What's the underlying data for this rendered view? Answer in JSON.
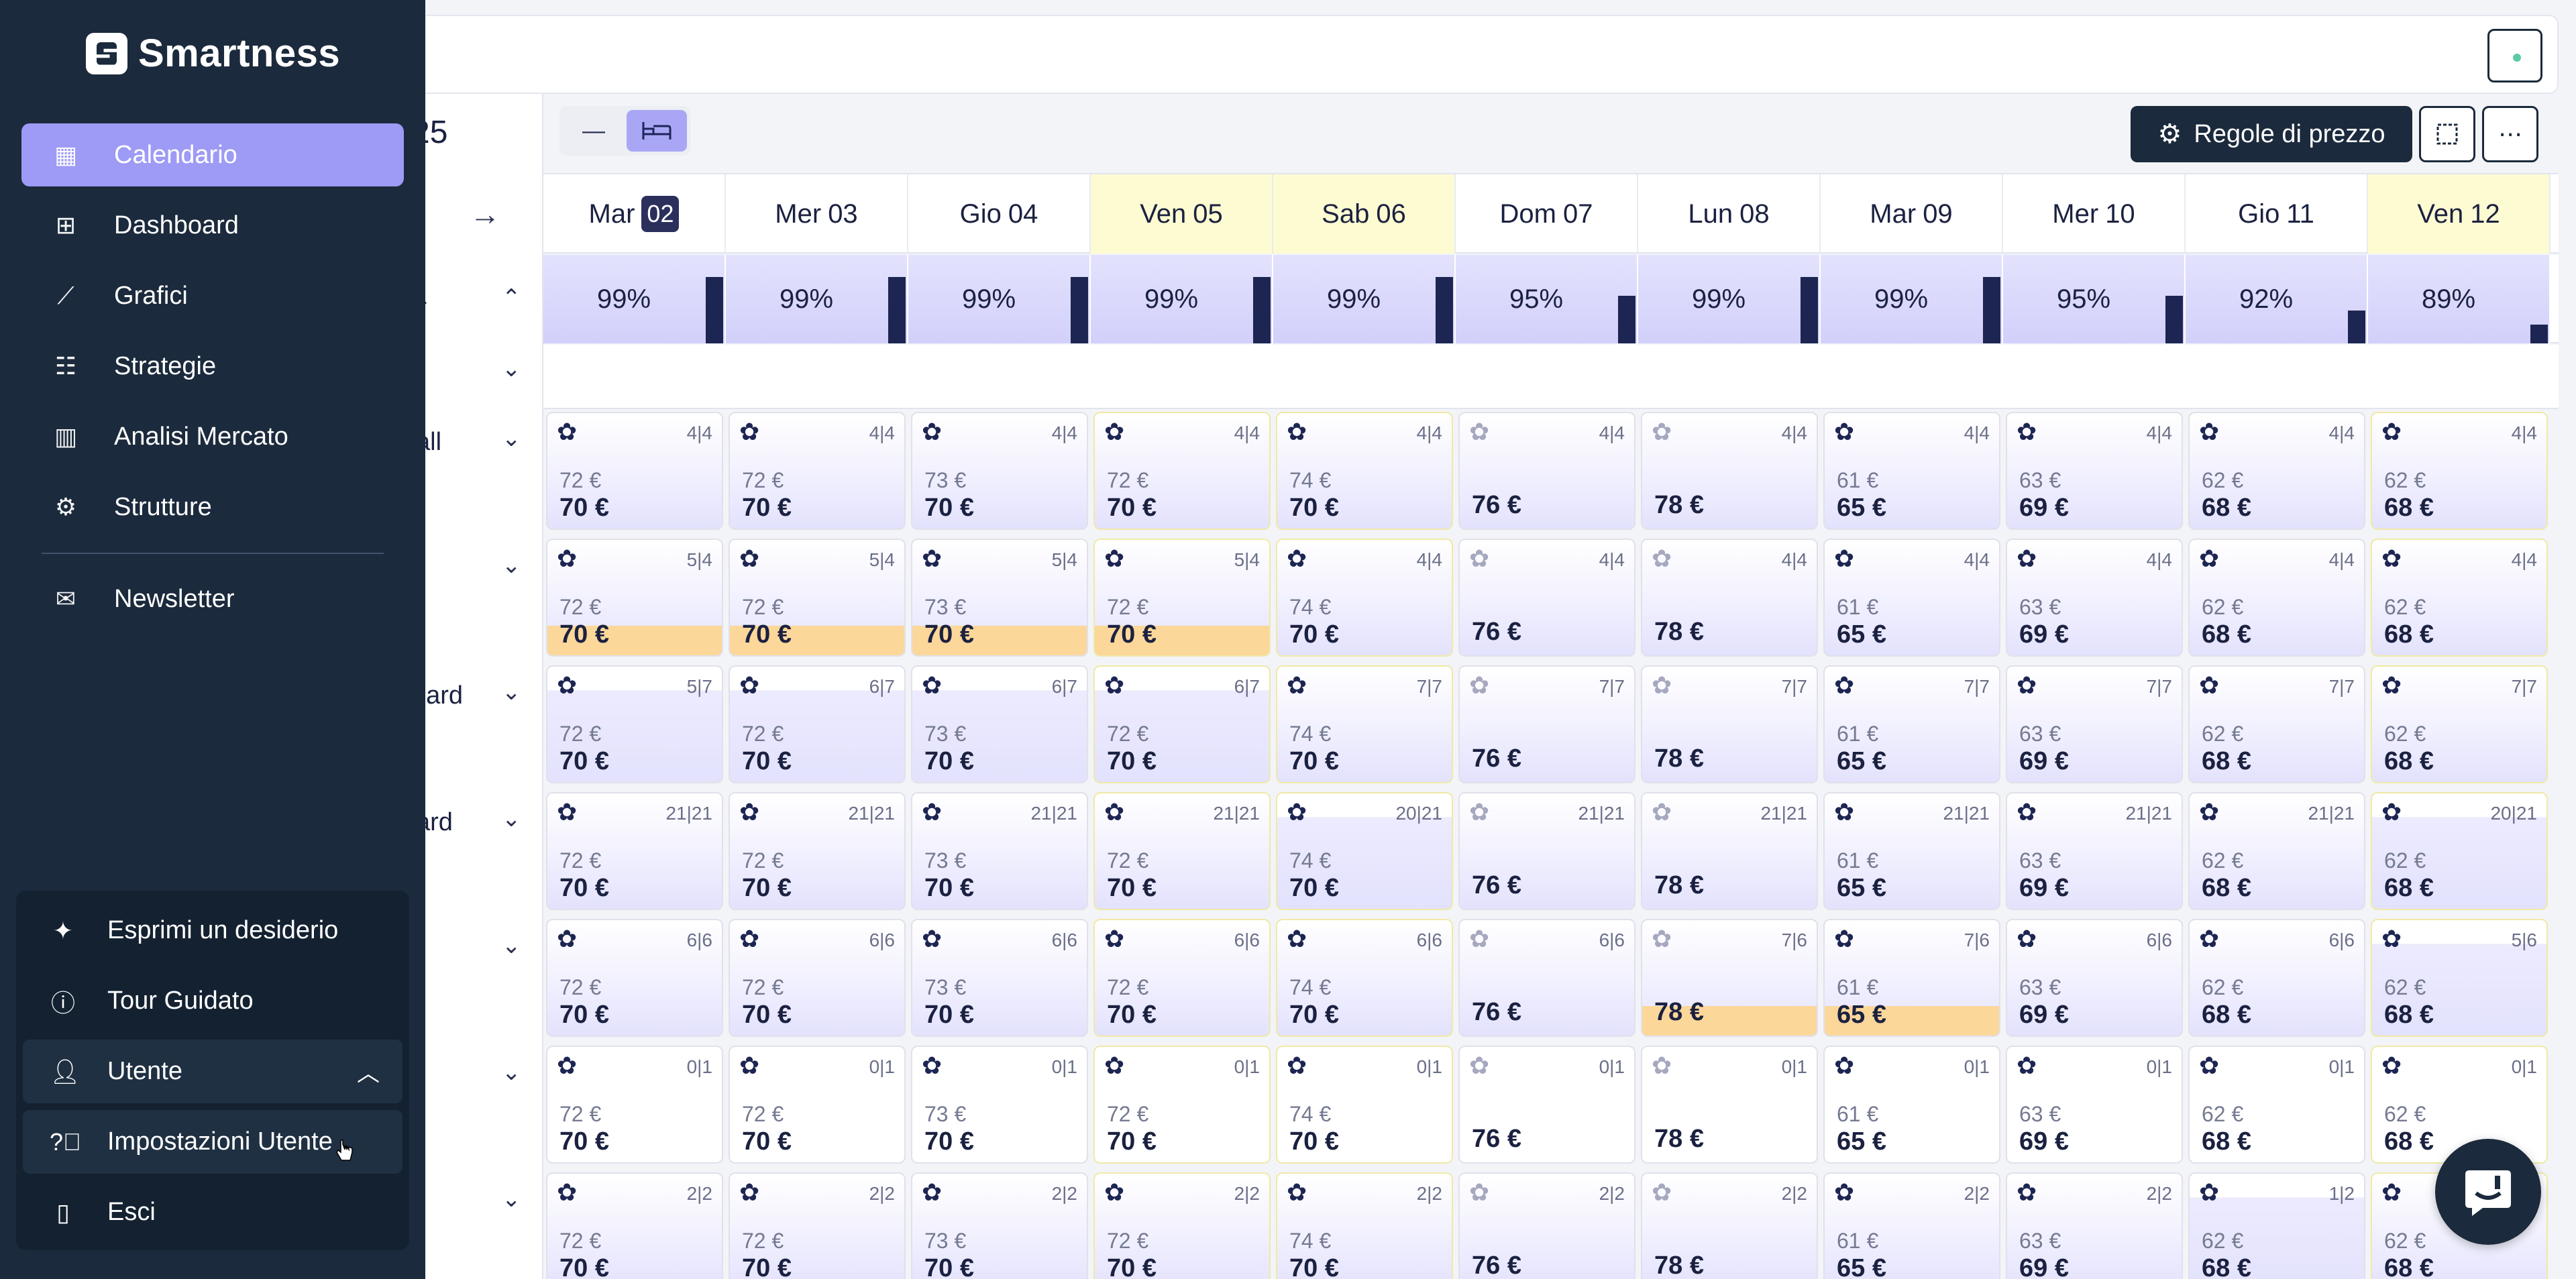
{
  "app": {
    "brand": "Smartness",
    "partial_date": "25"
  },
  "sidebar": {
    "items": [
      {
        "label": "Calendario",
        "icon": "calendar-icon",
        "active": true
      },
      {
        "label": "Dashboard",
        "icon": "dashboard-grid-icon",
        "active": false
      },
      {
        "label": "Grafici",
        "icon": "line-chart-icon",
        "active": false
      },
      {
        "label": "Strategie",
        "icon": "sliders-icon",
        "active": false
      },
      {
        "label": "Analisi Mercato",
        "icon": "bar-chart-icon",
        "active": false
      },
      {
        "label": "Strutture",
        "icon": "gear-icon",
        "active": false
      }
    ],
    "newsletter": {
      "label": "Newsletter",
      "icon": "mail-icon"
    }
  },
  "user_menu": {
    "items": [
      {
        "label": "Esprimi un desiderio",
        "icon": "sparkle-icon"
      },
      {
        "label": "Tour Guidato",
        "icon": "info-icon"
      },
      {
        "label": "Utente",
        "icon": "user-icon"
      },
      {
        "label": "Impostazioni Utente",
        "icon": "help-circle-icon"
      },
      {
        "label": "Esci",
        "icon": "door-icon"
      }
    ]
  },
  "toolbar": {
    "price_rules_label": "Regole di prezzo",
    "view_options": [
      "list-view-icon",
      "bed-view-icon"
    ],
    "selection_icon": "selection-icon",
    "more_icon": "more-horizontal-icon"
  },
  "calendar": {
    "days": [
      {
        "dow": "Mar",
        "num": "02",
        "today": true,
        "weekend": false,
        "occupancy": "99%",
        "occ_fraction": 0.99
      },
      {
        "dow": "Mer",
        "num": "03",
        "today": false,
        "weekend": false,
        "occupancy": "99%",
        "occ_fraction": 0.99
      },
      {
        "dow": "Gio",
        "num": "04",
        "today": false,
        "weekend": false,
        "occupancy": "99%",
        "occ_fraction": 0.99
      },
      {
        "dow": "Ven",
        "num": "05",
        "today": false,
        "weekend": true,
        "occupancy": "99%",
        "occ_fraction": 0.99
      },
      {
        "dow": "Sab",
        "num": "06",
        "today": false,
        "weekend": true,
        "occupancy": "99%",
        "occ_fraction": 0.99
      },
      {
        "dow": "Dom",
        "num": "07",
        "today": false,
        "weekend": false,
        "occupancy": "95%",
        "occ_fraction": 0.95
      },
      {
        "dow": "Lun",
        "num": "08",
        "today": false,
        "weekend": false,
        "occupancy": "99%",
        "occ_fraction": 0.99
      },
      {
        "dow": "Mar",
        "num": "09",
        "today": false,
        "weekend": false,
        "occupancy": "99%",
        "occ_fraction": 0.99
      },
      {
        "dow": "Mer",
        "num": "10",
        "today": false,
        "weekend": false,
        "occupancy": "95%",
        "occ_fraction": 0.95
      },
      {
        "dow": "Gio",
        "num": "11",
        "today": false,
        "weekend": false,
        "occupancy": "92%",
        "occ_fraction": 0.92
      },
      {
        "dow": "Ven",
        "num": "12",
        "today": false,
        "weekend": true,
        "occupancy": "89%",
        "occ_fraction": 0.89
      }
    ],
    "occupancy_label_partial": "a",
    "row_labels": [
      "",
      "all",
      "",
      "dard",
      "ard",
      "",
      "",
      ""
    ],
    "rows": [
      {
        "cells": [
          {
            "inv": "4|4",
            "base": "72 €",
            "price": "70 €",
            "gear": "dark"
          },
          {
            "inv": "4|4",
            "base": "72 €",
            "price": "70 €",
            "gear": "dark"
          },
          {
            "inv": "4|4",
            "base": "73 €",
            "price": "70 €",
            "gear": "dark"
          },
          {
            "inv": "4|4",
            "base": "72 €",
            "price": "70 €",
            "gear": "dark"
          },
          {
            "inv": "4|4",
            "base": "74 €",
            "price": "70 €",
            "gear": "dark"
          },
          {
            "inv": "4|4",
            "base": "",
            "price": "76 €",
            "gear": "light"
          },
          {
            "inv": "4|4",
            "base": "",
            "price": "78 €",
            "gear": "light"
          },
          {
            "inv": "4|4",
            "base": "61 €",
            "price": "65 €",
            "gear": "dark"
          },
          {
            "inv": "4|4",
            "base": "63 €",
            "price": "69 €",
            "gear": "dark"
          },
          {
            "inv": "4|4",
            "base": "62 €",
            "price": "68 €",
            "gear": "dark"
          },
          {
            "inv": "4|4",
            "base": "62 €",
            "price": "68 €",
            "gear": "dark"
          }
        ]
      },
      {
        "cells": [
          {
            "inv": "5|4",
            "base": "72 €",
            "price": "70 €",
            "gear": "dark",
            "hl": true
          },
          {
            "inv": "5|4",
            "base": "72 €",
            "price": "70 €",
            "gear": "dark",
            "hl": true
          },
          {
            "inv": "5|4",
            "base": "73 €",
            "price": "70 €",
            "gear": "dark",
            "hl": true
          },
          {
            "inv": "5|4",
            "base": "72 €",
            "price": "70 €",
            "gear": "dark",
            "hl": true
          },
          {
            "inv": "4|4",
            "base": "74 €",
            "price": "70 €",
            "gear": "dark"
          },
          {
            "inv": "4|4",
            "base": "",
            "price": "76 €",
            "gear": "light"
          },
          {
            "inv": "4|4",
            "base": "",
            "price": "78 €",
            "gear": "light"
          },
          {
            "inv": "4|4",
            "base": "61 €",
            "price": "65 €",
            "gear": "dark"
          },
          {
            "inv": "4|4",
            "base": "63 €",
            "price": "69 €",
            "gear": "dark"
          },
          {
            "inv": "4|4",
            "base": "62 €",
            "price": "68 €",
            "gear": "dark"
          },
          {
            "inv": "4|4",
            "base": "62 €",
            "price": "68 €",
            "gear": "dark"
          }
        ]
      },
      {
        "cells": [
          {
            "inv": "5|7",
            "base": "72 €",
            "price": "70 €",
            "gear": "dark",
            "top_white": true
          },
          {
            "inv": "6|7",
            "base": "72 €",
            "price": "70 €",
            "gear": "dark",
            "top_white": true
          },
          {
            "inv": "6|7",
            "base": "73 €",
            "price": "70 €",
            "gear": "dark",
            "top_white": true
          },
          {
            "inv": "6|7",
            "base": "72 €",
            "price": "70 €",
            "gear": "dark",
            "top_white": true
          },
          {
            "inv": "7|7",
            "base": "74 €",
            "price": "70 €",
            "gear": "dark"
          },
          {
            "inv": "7|7",
            "base": "",
            "price": "76 €",
            "gear": "light"
          },
          {
            "inv": "7|7",
            "base": "",
            "price": "78 €",
            "gear": "light"
          },
          {
            "inv": "7|7",
            "base": "61 €",
            "price": "65 €",
            "gear": "dark"
          },
          {
            "inv": "7|7",
            "base": "63 €",
            "price": "69 €",
            "gear": "dark"
          },
          {
            "inv": "7|7",
            "base": "62 €",
            "price": "68 €",
            "gear": "dark"
          },
          {
            "inv": "7|7",
            "base": "62 €",
            "price": "68 €",
            "gear": "dark"
          }
        ]
      },
      {
        "cells": [
          {
            "inv": "21|21",
            "base": "72 €",
            "price": "70 €",
            "gear": "dark"
          },
          {
            "inv": "21|21",
            "base": "72 €",
            "price": "70 €",
            "gear": "dark"
          },
          {
            "inv": "21|21",
            "base": "73 €",
            "price": "70 €",
            "gear": "dark"
          },
          {
            "inv": "21|21",
            "base": "72 €",
            "price": "70 €",
            "gear": "dark"
          },
          {
            "inv": "20|21",
            "base": "74 €",
            "price": "70 €",
            "gear": "dark",
            "top_white": true
          },
          {
            "inv": "21|21",
            "base": "",
            "price": "76 €",
            "gear": "light"
          },
          {
            "inv": "21|21",
            "base": "",
            "price": "78 €",
            "gear": "light"
          },
          {
            "inv": "21|21",
            "base": "61 €",
            "price": "65 €",
            "gear": "dark"
          },
          {
            "inv": "21|21",
            "base": "63 €",
            "price": "69 €",
            "gear": "dark"
          },
          {
            "inv": "21|21",
            "base": "62 €",
            "price": "68 €",
            "gear": "dark"
          },
          {
            "inv": "20|21",
            "base": "62 €",
            "price": "68 €",
            "gear": "dark",
            "top_white": true
          }
        ]
      },
      {
        "cells": [
          {
            "inv": "6|6",
            "base": "72 €",
            "price": "70 €",
            "gear": "dark"
          },
          {
            "inv": "6|6",
            "base": "72 €",
            "price": "70 €",
            "gear": "dark"
          },
          {
            "inv": "6|6",
            "base": "73 €",
            "price": "70 €",
            "gear": "dark"
          },
          {
            "inv": "6|6",
            "base": "72 €",
            "price": "70 €",
            "gear": "dark"
          },
          {
            "inv": "6|6",
            "base": "74 €",
            "price": "70 €",
            "gear": "dark"
          },
          {
            "inv": "6|6",
            "base": "",
            "price": "76 €",
            "gear": "light"
          },
          {
            "inv": "7|6",
            "base": "",
            "price": "78 €",
            "gear": "light",
            "hl": true
          },
          {
            "inv": "7|6",
            "base": "61 €",
            "price": "65 €",
            "gear": "dark",
            "hl": true
          },
          {
            "inv": "6|6",
            "base": "63 €",
            "price": "69 €",
            "gear": "dark"
          },
          {
            "inv": "6|6",
            "base": "62 €",
            "price": "68 €",
            "gear": "dark"
          },
          {
            "inv": "5|6",
            "base": "62 €",
            "price": "68 €",
            "gear": "dark",
            "top_white": true
          }
        ]
      },
      {
        "cells": [
          {
            "inv": "0|1",
            "base": "72 €",
            "price": "70 €",
            "gear": "dark",
            "white": true
          },
          {
            "inv": "0|1",
            "base": "72 €",
            "price": "70 €",
            "gear": "dark",
            "white": true
          },
          {
            "inv": "0|1",
            "base": "73 €",
            "price": "70 €",
            "gear": "dark",
            "white": true
          },
          {
            "inv": "0|1",
            "base": "72 €",
            "price": "70 €",
            "gear": "dark",
            "white": true
          },
          {
            "inv": "0|1",
            "base": "74 €",
            "price": "70 €",
            "gear": "dark",
            "white": true
          },
          {
            "inv": "0|1",
            "base": "",
            "price": "76 €",
            "gear": "light",
            "white": true
          },
          {
            "inv": "0|1",
            "base": "",
            "price": "78 €",
            "gear": "light",
            "white": true
          },
          {
            "inv": "0|1",
            "base": "61 €",
            "price": "65 €",
            "gear": "dark",
            "white": true
          },
          {
            "inv": "0|1",
            "base": "63 €",
            "price": "69 €",
            "gear": "dark",
            "white": true
          },
          {
            "inv": "0|1",
            "base": "62 €",
            "price": "68 €",
            "gear": "dark",
            "white": true
          },
          {
            "inv": "0|1",
            "base": "62 €",
            "price": "68 €",
            "gear": "dark",
            "white": true
          }
        ]
      },
      {
        "cells": [
          {
            "inv": "2|2",
            "base": "72 €",
            "price": "70 €",
            "gear": "dark"
          },
          {
            "inv": "2|2",
            "base": "72 €",
            "price": "70 €",
            "gear": "dark"
          },
          {
            "inv": "2|2",
            "base": "73 €",
            "price": "70 €",
            "gear": "dark"
          },
          {
            "inv": "2|2",
            "base": "72 €",
            "price": "70 €",
            "gear": "dark"
          },
          {
            "inv": "2|2",
            "base": "74 €",
            "price": "70 €",
            "gear": "dark"
          },
          {
            "inv": "2|2",
            "base": "",
            "price": "76 €",
            "gear": "light"
          },
          {
            "inv": "2|2",
            "base": "",
            "price": "78 €",
            "gear": "light"
          },
          {
            "inv": "2|2",
            "base": "61 €",
            "price": "65 €",
            "gear": "dark"
          },
          {
            "inv": "2|2",
            "base": "63 €",
            "price": "69 €",
            "gear": "dark"
          },
          {
            "inv": "1|2",
            "base": "62 €",
            "price": "68 €",
            "gear": "dark",
            "top_white": true
          },
          {
            "inv": "2|2",
            "base": "62 €",
            "price": "68 €",
            "gear": "dark"
          }
        ]
      }
    ]
  },
  "colors": {
    "sidebar_bg": "#1b2a3c",
    "active_nav": "#9d9bf5",
    "weekend_bg": "#fdfbd2",
    "highlight": "#fcd79a",
    "occupancy_bar": "#1d2552"
  }
}
